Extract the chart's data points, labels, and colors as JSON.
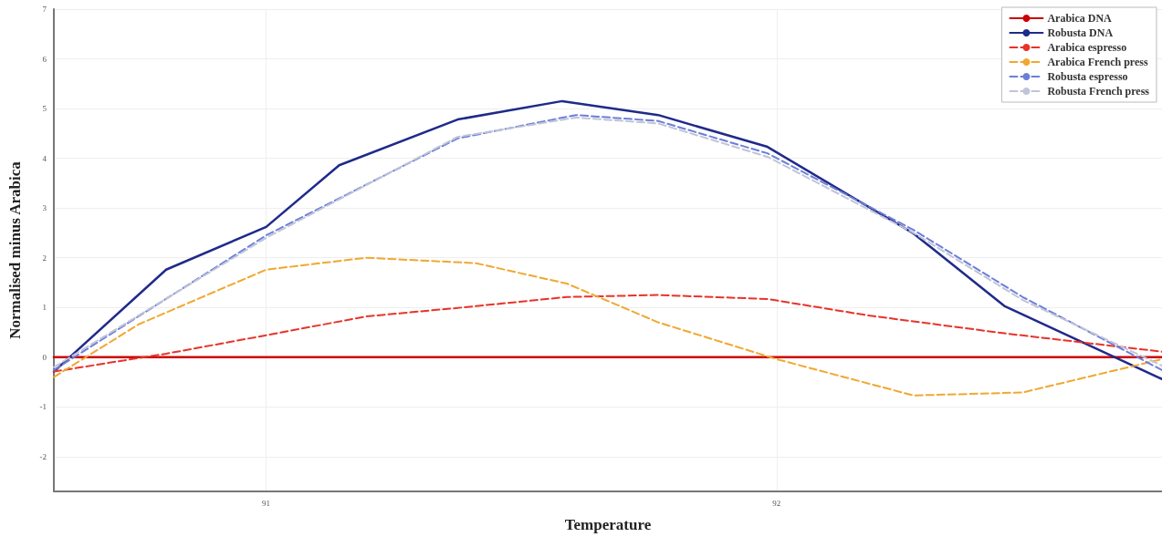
{
  "chart_data": {
    "type": "line",
    "xlabel": "Temperature",
    "ylabel": "Normalised minus Arabica",
    "xlim": [
      90.584,
      92.755
    ],
    "xticks": [
      91,
      92
    ],
    "ylim": [
      -2.7,
      7
    ],
    "yticks": [
      -2,
      -1,
      0,
      1,
      2,
      3,
      4,
      5,
      6,
      7
    ],
    "grid": true,
    "legend": "top right",
    "marker": "none",
    "series": [
      {
        "name": "Arabica DNA",
        "color": "#cc0000",
        "line_style": "solid",
        "x": [
          90.584,
          92.755
        ],
        "values": [
          0,
          0
        ]
      },
      {
        "name": "Robusta DNA",
        "color": "#1f2a8a",
        "line_style": "solid",
        "x": [
          90.584,
          90.804,
          91,
          91.143,
          91.375,
          91.58,
          91.768,
          91.982,
          92.268,
          92.446,
          92.755
        ],
        "values": [
          -0.29,
          1.76,
          2.62,
          3.86,
          4.78,
          5.15,
          4.87,
          4.23,
          2.49,
          1.03,
          -0.44
        ]
      },
      {
        "name": "Arabica espresso",
        "color": "#e8332a",
        "line_style": "dashed",
        "x": [
          90.584,
          90.804,
          91,
          91.196,
          91.375,
          91.589,
          91.768,
          91.982,
          92.179,
          92.446,
          92.755
        ],
        "values": [
          -0.29,
          0.07,
          0.44,
          0.82,
          0.99,
          1.21,
          1.25,
          1.17,
          0.84,
          0.48,
          0.11
        ]
      },
      {
        "name": "Arabica French press",
        "color": "#f0a830",
        "line_style": "dashed",
        "x": [
          90.584,
          90.75,
          91,
          91.196,
          91.411,
          91.589,
          91.768,
          92,
          92.268,
          92.482,
          92.755
        ],
        "values": [
          -0.4,
          0.66,
          1.76,
          2.0,
          1.89,
          1.48,
          0.7,
          -0.04,
          -0.77,
          -0.71,
          -0.04
        ]
      },
      {
        "name": "Robusta espresso",
        "color": "#6c7fd8",
        "line_style": "dashed",
        "x": [
          90.584,
          91,
          91.375,
          91.607,
          91.768,
          91.982,
          92.268,
          92.482,
          92.755
        ],
        "values": [
          -0.26,
          2.45,
          4.4,
          4.87,
          4.75,
          4.1,
          2.56,
          1.21,
          -0.26
        ]
      },
      {
        "name": "Robusta French press",
        "color": "#c0c4d8",
        "line_style": "dashed",
        "x": [
          90.584,
          91,
          91.375,
          91.607,
          91.768,
          91.982,
          92.268,
          92.482,
          92.755
        ],
        "values": [
          -0.2,
          2.4,
          4.43,
          4.82,
          4.7,
          4.03,
          2.5,
          1.15,
          -0.17
        ]
      }
    ]
  }
}
